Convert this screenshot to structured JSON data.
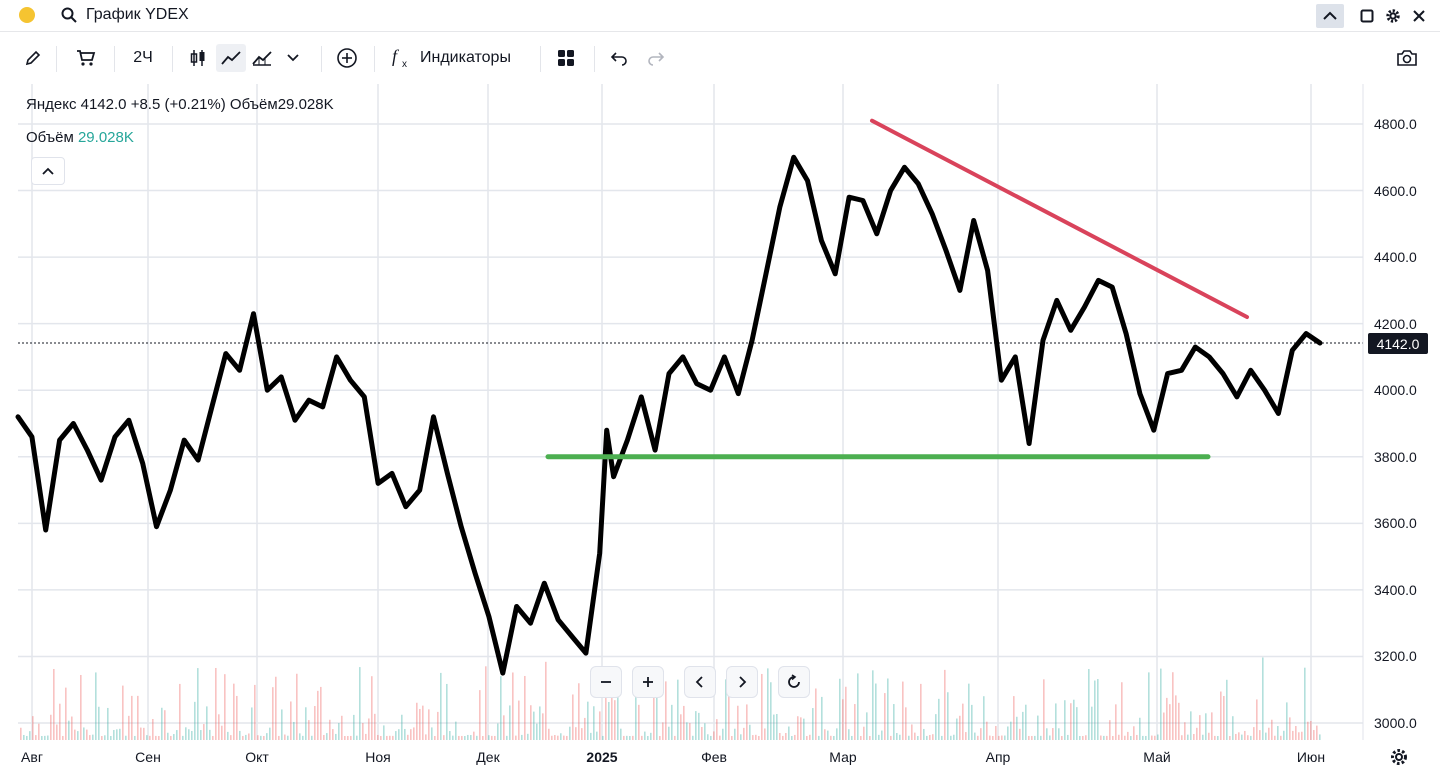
{
  "window": {
    "title": "График YDEX"
  },
  "toolbar": {
    "interval_label": "2Ч",
    "indicators_label": "Индикаторы"
  },
  "legend": {
    "name": "Яндекс",
    "last": "4142.0",
    "change": "+8.5 (+0.21%)",
    "volume_label": "Объём",
    "volume_value": "29.028K",
    "volume_row_label": "Объём",
    "volume_row_value": "29.028K"
  },
  "price_tag": "4142.0",
  "colors": {
    "price_line": "#000000",
    "support_line": "#4caf50",
    "resistance_line": "#d9435b",
    "volume_up": "#26a69a",
    "volume_down": "#ef5350"
  },
  "chart_data": {
    "type": "line",
    "title": "",
    "xlabel": "",
    "ylabel": "",
    "ylim": [
      2960,
      4900
    ],
    "y_ticks": [
      "4800.0",
      "4600.0",
      "4400.0",
      "4200.0",
      "4000.0",
      "3800.0",
      "3600.0",
      "3400.0",
      "3200.0",
      "3000.0"
    ],
    "x_ticks": [
      "Авг",
      "Сен",
      "Окт",
      "Ноя",
      "Дек",
      "2025",
      "Фев",
      "Мар",
      "Апр",
      "Май",
      "Июн"
    ],
    "last_value": 4142.0,
    "series": [
      {
        "points": [
          [
            0,
            3920
          ],
          [
            2,
            3860
          ],
          [
            4,
            3580
          ],
          [
            6,
            3850
          ],
          [
            8,
            3900
          ],
          [
            10,
            3820
          ],
          [
            12,
            3730
          ],
          [
            14,
            3860
          ],
          [
            16,
            3910
          ],
          [
            18,
            3780
          ],
          [
            20,
            3590
          ],
          [
            22,
            3700
          ],
          [
            24,
            3850
          ],
          [
            26,
            3790
          ],
          [
            28,
            3950
          ],
          [
            30,
            4110
          ],
          [
            32,
            4060
          ],
          [
            34,
            4230
          ],
          [
            36,
            4000
          ],
          [
            38,
            4040
          ],
          [
            40,
            3910
          ],
          [
            42,
            3970
          ],
          [
            44,
            3950
          ],
          [
            46,
            4100
          ],
          [
            48,
            4030
          ],
          [
            50,
            3980
          ],
          [
            52,
            3720
          ],
          [
            54,
            3750
          ],
          [
            56,
            3650
          ],
          [
            58,
            3700
          ],
          [
            60,
            3920
          ],
          [
            62,
            3750
          ],
          [
            64,
            3590
          ],
          [
            66,
            3450
          ],
          [
            68,
            3320
          ],
          [
            70,
            3150
          ],
          [
            72,
            3350
          ],
          [
            74,
            3300
          ],
          [
            76,
            3420
          ],
          [
            78,
            3310
          ],
          [
            80,
            3260
          ],
          [
            82,
            3210
          ],
          [
            84,
            3510
          ],
          [
            85,
            3880
          ],
          [
            86,
            3740
          ],
          [
            88,
            3850
          ],
          [
            90,
            3980
          ],
          [
            92,
            3820
          ],
          [
            94,
            4050
          ],
          [
            96,
            4100
          ],
          [
            98,
            4020
          ],
          [
            100,
            4000
          ],
          [
            102,
            4100
          ],
          [
            104,
            3990
          ],
          [
            106,
            4150
          ],
          [
            108,
            4350
          ],
          [
            110,
            4550
          ],
          [
            112,
            4700
          ],
          [
            114,
            4630
          ],
          [
            116,
            4450
          ],
          [
            118,
            4350
          ],
          [
            120,
            4580
          ],
          [
            122,
            4570
          ],
          [
            124,
            4470
          ],
          [
            126,
            4600
          ],
          [
            128,
            4670
          ],
          [
            130,
            4620
          ],
          [
            132,
            4530
          ],
          [
            134,
            4420
          ],
          [
            136,
            4300
          ],
          [
            138,
            4510
          ],
          [
            140,
            4360
          ],
          [
            142,
            4030
          ],
          [
            144,
            4100
          ],
          [
            146,
            3840
          ],
          [
            148,
            4150
          ],
          [
            150,
            4270
          ],
          [
            152,
            4180
          ],
          [
            154,
            4250
          ],
          [
            156,
            4330
          ],
          [
            158,
            4310
          ],
          [
            160,
            4170
          ],
          [
            162,
            3990
          ],
          [
            164,
            3880
          ],
          [
            166,
            4050
          ],
          [
            168,
            4060
          ],
          [
            170,
            4130
          ],
          [
            172,
            4100
          ],
          [
            174,
            4050
          ],
          [
            176,
            3980
          ],
          [
            178,
            4060
          ],
          [
            180,
            4000
          ],
          [
            182,
            3930
          ],
          [
            184,
            4120
          ],
          [
            186,
            4170
          ],
          [
            188,
            4142
          ]
        ]
      }
    ],
    "trendlines": [
      {
        "name": "resistance",
        "from": [
          "Мар",
          4810
        ],
        "to": [
          "Май",
          4220
        ]
      },
      {
        "name": "support",
        "from": [
          "Дек",
          3800
        ],
        "to": [
          "Май",
          3800
        ]
      }
    ]
  }
}
